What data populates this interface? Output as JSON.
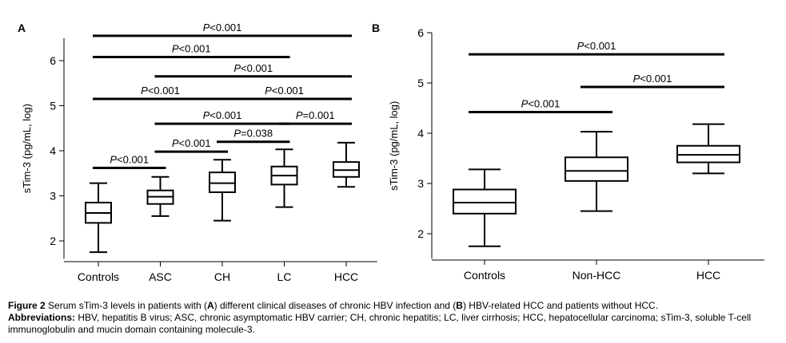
{
  "chart_data": [
    {
      "panel": "A",
      "type": "box",
      "ylabel": "sTim-3 (pg/mL, log)",
      "ylim": [
        1.6,
        6.5
      ],
      "yticks": [
        2,
        3,
        4,
        5,
        6
      ],
      "categories": [
        "Controls",
        "ASC",
        "CH",
        "LC",
        "HCC"
      ],
      "boxes": [
        {
          "min": 1.75,
          "q1": 2.4,
          "median": 2.62,
          "q3": 2.85,
          "max": 3.28
        },
        {
          "min": 2.55,
          "q1": 2.82,
          "median": 2.98,
          "q3": 3.12,
          "max": 3.42
        },
        {
          "min": 2.45,
          "q1": 3.08,
          "median": 3.28,
          "q3": 3.52,
          "max": 3.8
        },
        {
          "min": 2.75,
          "q1": 3.25,
          "median": 3.45,
          "q3": 3.65,
          "max": 4.03
        },
        {
          "min": 3.2,
          "q1": 3.42,
          "median": 3.57,
          "q3": 3.75,
          "max": 4.18
        }
      ],
      "comparisons": [
        {
          "from": 0,
          "to": 4,
          "y": 6.55,
          "label": "P<0.001"
        },
        {
          "from": 0,
          "to": 3,
          "y": 6.08,
          "label": "P<0.001"
        },
        {
          "from": 1,
          "to": 4,
          "y": 5.65,
          "label": "P<0.001"
        },
        {
          "from": 0,
          "to": 2,
          "y": 5.15,
          "label": "P<0.001"
        },
        {
          "from": 2,
          "to": 4,
          "y": 5.15,
          "label": "P<0.001"
        },
        {
          "from": 1,
          "to": 3,
          "y": 4.6,
          "label": "P<0.001"
        },
        {
          "from": 3,
          "to": 4,
          "y": 4.6,
          "label": "P=0.001"
        },
        {
          "from": 2,
          "to": 3,
          "y": 4.2,
          "label": "P=0.038"
        },
        {
          "from": 1,
          "to": 2,
          "y": 3.98,
          "label": "P<0.001"
        },
        {
          "from": 0,
          "to": 1,
          "y": 3.62,
          "label": "P<0.001"
        }
      ]
    },
    {
      "panel": "B",
      "type": "box",
      "ylabel": "sTim-3 (pg/mL, log)",
      "ylim": [
        1.5,
        6.0
      ],
      "yticks": [
        2,
        3,
        4,
        5,
        6
      ],
      "categories": [
        "Controls",
        "Non-HCC",
        "HCC"
      ],
      "boxes": [
        {
          "min": 1.75,
          "q1": 2.4,
          "median": 2.62,
          "q3": 2.88,
          "max": 3.28
        },
        {
          "min": 2.45,
          "q1": 3.05,
          "median": 3.25,
          "q3": 3.52,
          "max": 4.03
        },
        {
          "min": 3.2,
          "q1": 3.42,
          "median": 3.57,
          "q3": 3.75,
          "max": 4.18
        }
      ],
      "comparisons": [
        {
          "from": 0,
          "to": 2,
          "y": 5.57,
          "label": "P<0.001"
        },
        {
          "from": 1,
          "to": 2,
          "y": 4.92,
          "label": "P<0.001"
        },
        {
          "from": 0,
          "to": 1,
          "y": 4.42,
          "label": "P<0.001"
        }
      ]
    }
  ],
  "caption": {
    "figure_label": "Figure 2",
    "figure_text": "Serum sTim-3 levels in patients with (A) different clinical diseases of chronic HBV infection and (B) HBV-related HCC and patients without HCC.",
    "abbr_label": "Abbreviations:",
    "abbr_text": "HBV, hepatitis B virus; ASC, chronic asymptomatic HBV carrier; CH, chronic hepatitis; LC, liver cirrhosis; HCC, hepatocellular carcinoma; sTim-3, soluble T-cell immunoglobulin and mucin domain containing molecule-3."
  }
}
